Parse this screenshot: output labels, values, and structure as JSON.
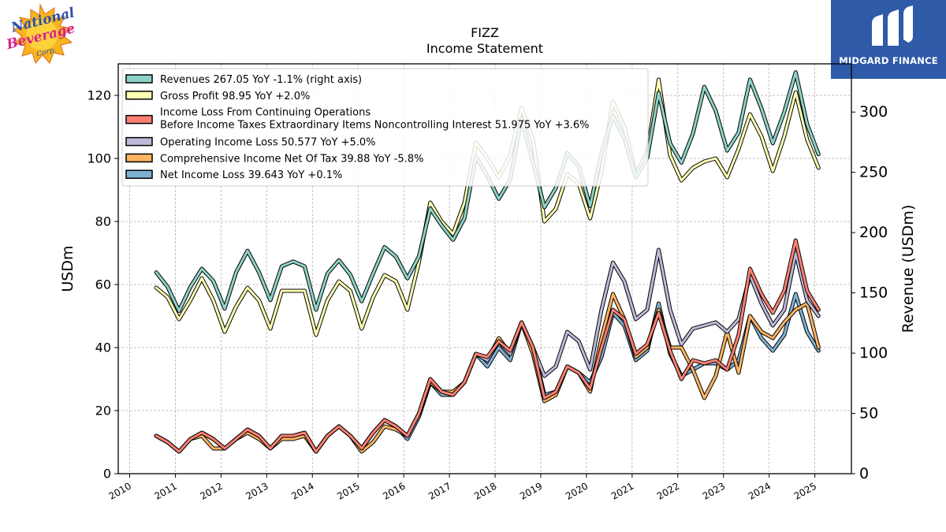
{
  "chart_data": {
    "type": "line",
    "title": "FIZZ",
    "subtitle": "Income Statement",
    "ylabel_left": "USDm",
    "ylabel_right": "Revenue (USDm)",
    "ylim_left": [
      0,
      130
    ],
    "ylim_right": [
      0,
      340
    ],
    "yticks_left": [
      "0",
      "20",
      "40",
      "60",
      "80",
      "100",
      "120"
    ],
    "yticks_right": [
      "0",
      "50",
      "100",
      "150",
      "200",
      "250",
      "300"
    ],
    "xlim": [
      2009.75,
      2025.8
    ],
    "xticks": [
      "2010",
      "2011",
      "2012",
      "2013",
      "2014",
      "2015",
      "2016",
      "2017",
      "2018",
      "2019",
      "2020",
      "2021",
      "2022",
      "2023",
      "2024",
      "2025"
    ],
    "grid": true,
    "legend_position": "top-left",
    "x": [
      2010.58,
      2010.83,
      2011.08,
      2011.33,
      2011.58,
      2011.83,
      2012.08,
      2012.33,
      2012.58,
      2012.83,
      2013.08,
      2013.33,
      2013.58,
      2013.83,
      2014.08,
      2014.33,
      2014.58,
      2014.83,
      2015.08,
      2015.33,
      2015.58,
      2015.83,
      2016.08,
      2016.33,
      2016.58,
      2016.83,
      2017.08,
      2017.33,
      2017.58,
      2017.83,
      2018.08,
      2018.33,
      2018.58,
      2018.83,
      2019.08,
      2019.33,
      2019.58,
      2019.83,
      2020.08,
      2020.33,
      2020.58,
      2020.83,
      2021.08,
      2021.33,
      2021.58,
      2021.83,
      2022.08,
      2022.33,
      2022.58,
      2022.83,
      2023.08,
      2023.33,
      2023.58,
      2023.83,
      2024.08,
      2024.33,
      2024.58,
      2024.83,
      2025.08
    ],
    "series": [
      {
        "name": "Revenues",
        "legend": "Revenues  267.05 YoY -1.1% (right axis)",
        "axis": "right",
        "color": "#8dd3c7",
        "values": [
          167,
          155,
          135,
          155,
          170,
          160,
          137,
          167,
          185,
          167,
          144,
          172,
          176,
          172,
          136,
          166,
          177,
          165,
          143,
          166,
          188,
          180,
          162,
          180,
          220,
          206,
          194,
          212,
          263,
          247,
          228,
          244,
          295,
          258,
          221,
          237,
          266,
          255,
          222,
          266,
          297,
          278,
          246,
          262,
          316,
          274,
          258,
          282,
          321,
          301,
          268,
          283,
          327,
          303,
          274,
          300,
          333,
          290,
          265
        ]
      },
      {
        "name": "Gross Profit",
        "legend": "Gross Profit  98.95 YoY +2.0%",
        "axis": "left",
        "color": "#ffffb3",
        "values": [
          59,
          56,
          49,
          55,
          62,
          55,
          45,
          53,
          59,
          55,
          46,
          58,
          58,
          58,
          44,
          55,
          61,
          58,
          46,
          56,
          63,
          61,
          52,
          67,
          86,
          80,
          76,
          86,
          105,
          100,
          94,
          101,
          116,
          106,
          80,
          84,
          95,
          92,
          81,
          96,
          118,
          110,
          95,
          102,
          125,
          101,
          93,
          97,
          99,
          100,
          94,
          103,
          114,
          107,
          96,
          107,
          121,
          106,
          97
        ]
      },
      {
        "name": "Income Loss From Continuing Operations Before Income Taxes Extraordinary Items Noncontrolling Interest",
        "legend_line1": "Income Loss From Continuing Operations",
        "legend_line2": "Before Income Taxes Extraordinary Items Noncontrolling Interest  51.975 YoY +3.6%",
        "axis": "left",
        "color": "#fb8072",
        "values": [
          12,
          10,
          7,
          11,
          13,
          11,
          8,
          11,
          14,
          12,
          8,
          12,
          12,
          13,
          7,
          12,
          15,
          12,
          8,
          13,
          17,
          15,
          12,
          19,
          30,
          26,
          25,
          29,
          38,
          37,
          42,
          39,
          48,
          40,
          24,
          26,
          34,
          32,
          27,
          40,
          52,
          49,
          38,
          41,
          51,
          39,
          30,
          36,
          35,
          36,
          33,
          44,
          65,
          57,
          51,
          58,
          74,
          58,
          52
        ]
      },
      {
        "name": "Operating Income Loss",
        "legend": "Operating Income Loss  50.577 YoY +5.0%",
        "axis": "left",
        "color": "#bebada",
        "values": [
          12,
          10,
          7,
          11,
          13,
          11,
          8,
          11,
          14,
          12,
          8,
          12,
          12,
          13,
          7,
          12,
          15,
          12,
          8,
          13,
          17,
          15,
          12,
          19,
          30,
          26,
          25,
          29,
          38,
          36,
          42,
          38,
          48,
          40,
          31,
          34,
          45,
          42,
          33,
          52,
          67,
          61,
          49,
          52,
          71,
          52,
          41,
          46,
          47,
          48,
          45,
          49,
          63,
          54,
          47,
          52,
          70,
          55,
          50
        ]
      },
      {
        "name": "Comprehensive Income Net Of Tax",
        "legend": "Comprehensive Income Net Of Tax  39.88 YoY -5.8%",
        "axis": "left",
        "color": "#fdb462",
        "values": [
          12,
          10,
          7,
          11,
          12,
          8,
          8,
          11,
          13,
          11,
          8,
          11,
          11,
          12,
          7,
          12,
          15,
          12,
          7,
          10,
          15,
          14,
          12,
          19,
          29,
          26,
          26,
          29,
          38,
          36,
          43,
          38,
          48,
          38,
          23,
          25,
          34,
          32,
          26,
          43,
          57,
          49,
          37,
          40,
          52,
          40,
          40,
          33,
          24,
          31,
          45,
          32,
          50,
          45,
          43,
          48,
          52,
          54,
          40
        ]
      },
      {
        "name": "Net Income Loss",
        "legend": "Net Income Loss  39.643 YoY +0.1%",
        "axis": "left",
        "color": "#80b1d3",
        "values": [
          12,
          10,
          7,
          11,
          13,
          11,
          8,
          11,
          14,
          12,
          8,
          12,
          12,
          13,
          7,
          12,
          15,
          12,
          8,
          13,
          17,
          15,
          11,
          18,
          29,
          25,
          25,
          29,
          38,
          34,
          40,
          36,
          48,
          40,
          25,
          26,
          34,
          32,
          29,
          37,
          51,
          47,
          36,
          39,
          54,
          38,
          31,
          33,
          35,
          35,
          33,
          36,
          50,
          43,
          39,
          44,
          57,
          45,
          39
        ]
      }
    ]
  },
  "logos": {
    "left": {
      "icon": "national-beverage-logo",
      "text1": "National",
      "text2": "Beverage",
      "text3": "Corp."
    },
    "right": {
      "icon": "midgard-finance-logo",
      "text": "MIDGARD FINANCE",
      "bg": "#2f5aa8"
    }
  }
}
